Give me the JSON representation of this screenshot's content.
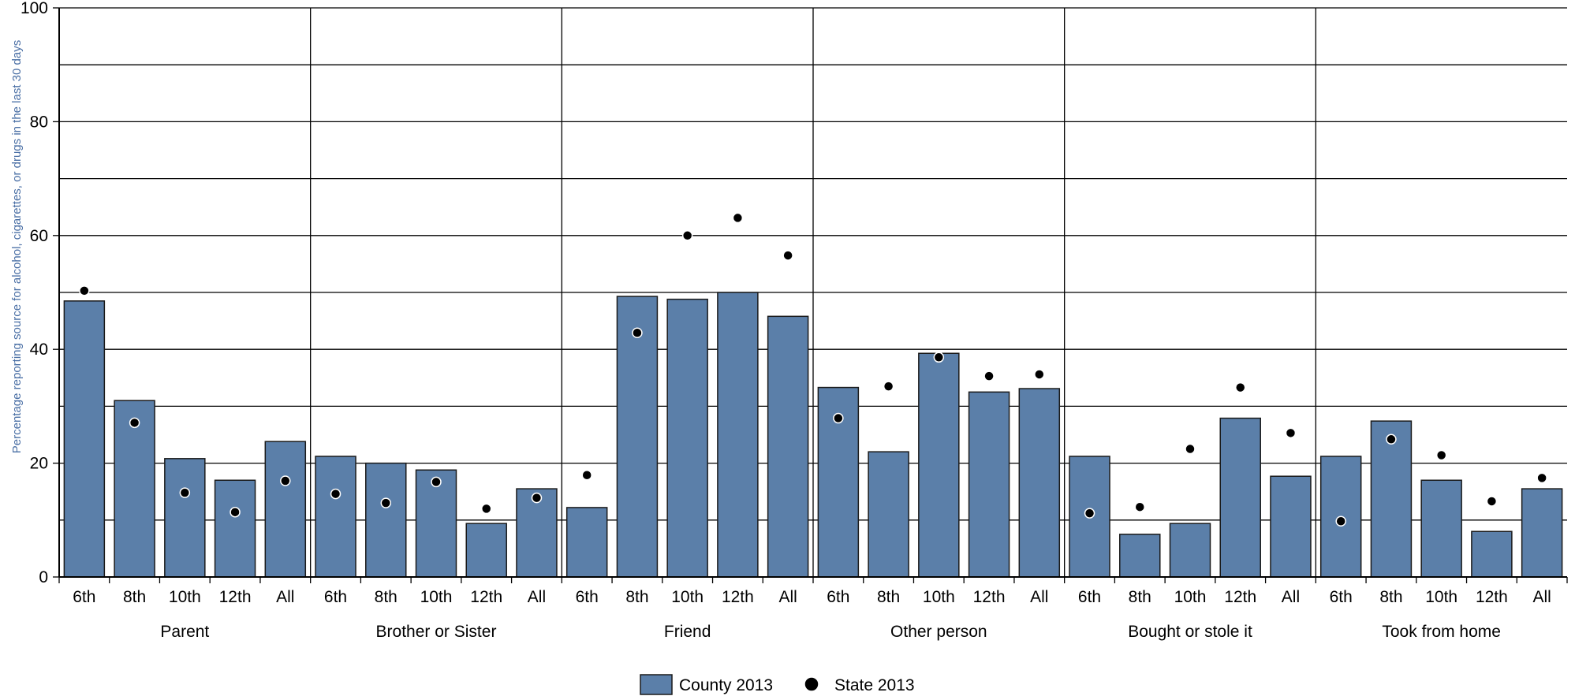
{
  "chart_data": {
    "type": "bar",
    "title": "",
    "ylabel": "Percentage reporting source for alcohol, cigarettes, or drugs in the last 30 days",
    "xlabel": "",
    "ylim": [
      0,
      100
    ],
    "y_ticks": [
      0,
      20,
      40,
      60,
      80,
      100
    ],
    "gridlines_y": [
      10,
      20,
      30,
      40,
      50,
      60,
      70,
      80,
      90,
      100
    ],
    "grid": true,
    "legend_position": "bottom",
    "groups": [
      "Parent",
      "Brother or Sister",
      "Friend",
      "Other person",
      "Bought or stole it",
      "Took from home"
    ],
    "categories": [
      "6th",
      "8th",
      "10th",
      "12th",
      "All"
    ],
    "series": [
      {
        "name": "County 2013",
        "kind": "bar",
        "color": "#5b7fa9",
        "values": [
          [
            48.5,
            31,
            20.8,
            17,
            23.8
          ],
          [
            21.2,
            20,
            18.8,
            9.4,
            15.5
          ],
          [
            12.2,
            49.3,
            48.8,
            50,
            45.8
          ],
          [
            33.3,
            22,
            39.3,
            32.5,
            33.1
          ],
          [
            21.2,
            7.5,
            9.4,
            27.9,
            17.7
          ],
          [
            21.2,
            27.4,
            17,
            8,
            15.5
          ]
        ]
      },
      {
        "name": "State 2013",
        "kind": "point",
        "color": "#000000",
        "values": [
          [
            50.3,
            27.1,
            14.8,
            11.4,
            16.9
          ],
          [
            14.6,
            13,
            16.7,
            12,
            13.9
          ],
          [
            17.9,
            42.9,
            60,
            63.1,
            56.5
          ],
          [
            27.9,
            33.5,
            38.6,
            35.3,
            35.6
          ],
          [
            11.2,
            12.3,
            22.5,
            33.3,
            25.3
          ],
          [
            9.8,
            24.2,
            21.4,
            13.3,
            17.4
          ]
        ]
      }
    ]
  }
}
